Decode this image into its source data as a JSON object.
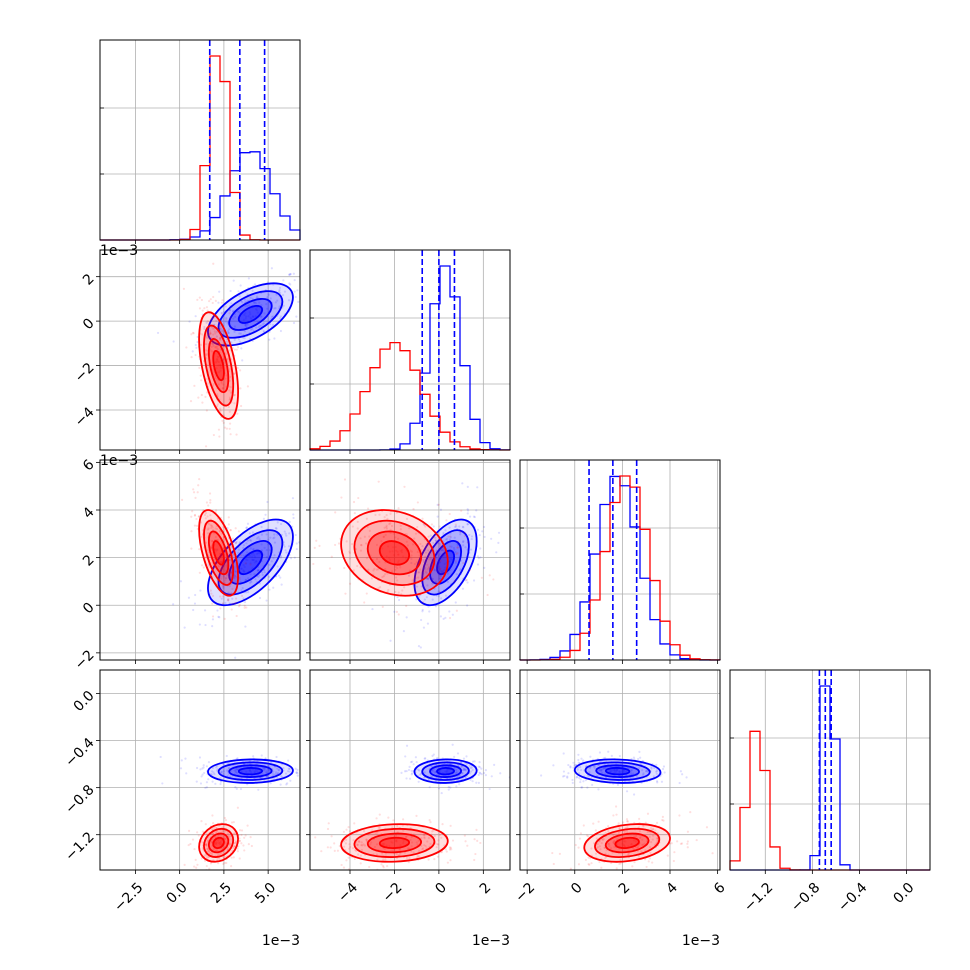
{
  "chart_data": {
    "type": "corner",
    "title": "",
    "series": [
      {
        "name": "",
        "color": "#0000ff"
      },
      {
        "name": "",
        "color": "#ff0000"
      }
    ],
    "parameters": [
      {
        "range": [
          -4.5,
          6.8
        ],
        "scale_label": "1e−3",
        "ticks": [
          {
            "v": -2.5,
            "label": "−2.5"
          },
          {
            "v": 0,
            "label": "0.0"
          },
          {
            "v": 2.5,
            "label": "2.5"
          },
          {
            "v": 5,
            "label": "5.0"
          }
        ]
      },
      {
        "range": [
          -5.8,
          3.2
        ],
        "scale_label": "1e−3",
        "ticks": [
          {
            "v": -4,
            "label": "−4"
          },
          {
            "v": -2,
            "label": "−2"
          },
          {
            "v": 0,
            "label": "0"
          },
          {
            "v": 2,
            "label": "2"
          }
        ]
      },
      {
        "range": [
          -2.3,
          6.1
        ],
        "scale_label": "1e−3",
        "ticks": [
          {
            "v": -2,
            "label": "−2"
          },
          {
            "v": 0,
            "label": "0"
          },
          {
            "v": 2,
            "label": "2"
          },
          {
            "v": 4,
            "label": "4"
          },
          {
            "v": 6,
            "label": "6"
          }
        ]
      },
      {
        "range": [
          -1.5,
          0.2
        ],
        "scale_label": "",
        "ticks": [
          {
            "v": -1.2,
            "label": "−1.2"
          },
          {
            "v": -0.8,
            "label": "−0.8"
          },
          {
            "v": -0.4,
            "label": "−0.4"
          },
          {
            "v": 0.0,
            "label": "0.0"
          }
        ]
      }
    ],
    "distributions": {
      "blue": {
        "mean": [
          4.0,
          0.3,
          1.8,
          -0.66
        ],
        "sd": [
          1.2,
          0.7,
          0.9,
          0.05
        ]
      },
      "red": {
        "mean": [
          2.2,
          -2.0,
          2.2,
          -1.27
        ],
        "sd": [
          0.55,
          1.2,
          0.9,
          0.08
        ]
      }
    },
    "quantiles": {
      "color": "#0000ff",
      "values": [
        [
          1.7,
          3.4,
          4.8
        ],
        [
          -0.75,
          0.0,
          0.7
        ],
        [
          0.6,
          1.6,
          2.6
        ],
        [
          -0.74,
          -0.69,
          -0.64
        ]
      ]
    },
    "grid": true,
    "legend": "none"
  }
}
